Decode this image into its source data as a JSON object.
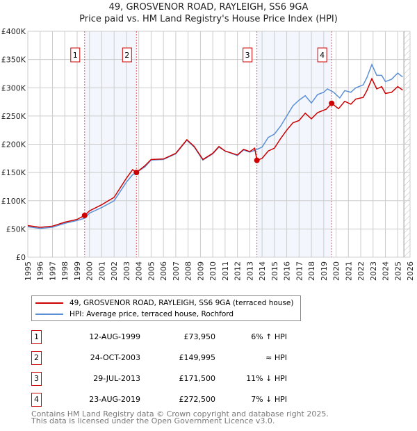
{
  "title": "49, GROSVENOR ROAD, RAYLEIGH, SS6 9GA",
  "subtitle": "Price paid vs. HM Land Registry's House Price Index (HPI)",
  "chart_data": {
    "type": "line",
    "title": "49, GROSVENOR ROAD, RAYLEIGH, SS6 9GA — Price paid vs. HM Land Registry's House Price Index (HPI)",
    "xlim": [
      1995,
      2026
    ],
    "ylim": [
      0,
      400000
    ],
    "x_ticks": [
      "1995",
      "1996",
      "1997",
      "1998",
      "1999",
      "2000",
      "2001",
      "2002",
      "2003",
      "2004",
      "2005",
      "2006",
      "2007",
      "2008",
      "2009",
      "2010",
      "2011",
      "2012",
      "2013",
      "2014",
      "2015",
      "2016",
      "2017",
      "2018",
      "2019",
      "2020",
      "2021",
      "2022",
      "2023",
      "2024",
      "2025",
      "2026"
    ],
    "y_ticks": [
      "£0",
      "£50K",
      "£100K",
      "£150K",
      "£200K",
      "£250K",
      "£300K",
      "£350K",
      "£400K"
    ],
    "grid": true,
    "series": [
      {
        "name": "49, GROSVENOR ROAD, RAYLEIGH, SS6 9GA (terraced house)",
        "color": "#cc0000",
        "x": [
          1995,
          1996,
          1997,
          1998,
          1999,
          1999.61,
          2000,
          2001,
          2002,
          2003,
          2003.5,
          2003.81,
          2004.5,
          2005,
          2006,
          2007,
          2007.9,
          2008.5,
          2009.2,
          2010,
          2010.5,
          2011,
          2012,
          2012.5,
          2013,
          2013.4,
          2013.58,
          2014,
          2014.5,
          2015,
          2015.5,
          2016,
          2016.5,
          2017,
          2017.5,
          2018,
          2018.5,
          2019.2,
          2019.64,
          2020.2,
          2020.7,
          2021.2,
          2021.6,
          2022.2,
          2022.5,
          2022.9,
          2023.3,
          2023.7,
          2024,
          2024.5,
          2025,
          2025.4
        ],
        "y": [
          56000,
          53000,
          55000,
          62000,
          67000,
          73950,
          82000,
          93000,
          106000,
          140000,
          155000,
          149995,
          162000,
          173000,
          174000,
          184000,
          208000,
          196000,
          173000,
          184000,
          196000,
          188000,
          181000,
          191000,
          187000,
          193000,
          171500,
          175000,
          188000,
          193000,
          210000,
          225000,
          238000,
          242000,
          255000,
          245000,
          256000,
          262000,
          272500,
          263000,
          276000,
          271000,
          280000,
          283000,
          295000,
          316000,
          298000,
          302000,
          290000,
          292000,
          302000,
          296000
        ]
      },
      {
        "name": "HPI: Average price, terraced house, Rochford",
        "color": "#5b8fd6",
        "x": [
          1995,
          1996,
          1997,
          1998,
          1999,
          1999.61,
          2000,
          2001,
          2002,
          2003,
          2003.5,
          2003.81,
          2004.5,
          2005,
          2006,
          2007,
          2007.9,
          2008.5,
          2009.2,
          2010,
          2010.5,
          2011,
          2012,
          2012.5,
          2013,
          2013.5,
          2014,
          2014.5,
          2015,
          2015.5,
          2016,
          2016.5,
          2017,
          2017.5,
          2018,
          2018.5,
          2019,
          2019.3,
          2019.8,
          2020.3,
          2020.7,
          2021.2,
          2021.6,
          2022.2,
          2022.5,
          2022.9,
          2023.3,
          2023.7,
          2024,
          2024.5,
          2025,
          2025.4
        ],
        "y": [
          54000,
          51000,
          53000,
          60000,
          65000,
          69000,
          78000,
          88000,
          100000,
          133000,
          146000,
          150000,
          160000,
          172000,
          173000,
          183000,
          207000,
          195000,
          172000,
          183000,
          195000,
          188000,
          180000,
          190000,
          186000,
          190000,
          195000,
          212000,
          218000,
          232000,
          250000,
          268000,
          278000,
          286000,
          273000,
          288000,
          292000,
          298000,
          292000,
          282000,
          295000,
          292000,
          300000,
          305000,
          318000,
          341000,
          322000,
          322000,
          311000,
          315000,
          326000,
          319000
        ]
      }
    ],
    "sales": [
      {
        "label": "1",
        "x": 1999.61,
        "y": 73950,
        "date": "12-AUG-1999",
        "price": "£73,950",
        "hpi": "6% ↑ HPI"
      },
      {
        "label": "2",
        "x": 2003.81,
        "y": 149995,
        "date": "24-OCT-2003",
        "price": "£149,995",
        "hpi": "≈ HPI"
      },
      {
        "label": "3",
        "x": 2013.58,
        "y": 171500,
        "date": "29-JUL-2013",
        "price": "£171,500",
        "hpi": "11% ↓ HPI"
      },
      {
        "label": "4",
        "x": 2019.64,
        "y": 272500,
        "date": "23-AUG-2019",
        "price": "£272,500",
        "hpi": "7% ↓ HPI"
      }
    ],
    "shaded_periods": [
      [
        1999.61,
        2003.81
      ],
      [
        2013.58,
        2019.64
      ]
    ],
    "forecast_from": 2025.5
  },
  "footer": [
    "Contains HM Land Registry data © Crown copyright and database right 2025.",
    "This data is licensed under the Open Government Licence v3.0."
  ]
}
